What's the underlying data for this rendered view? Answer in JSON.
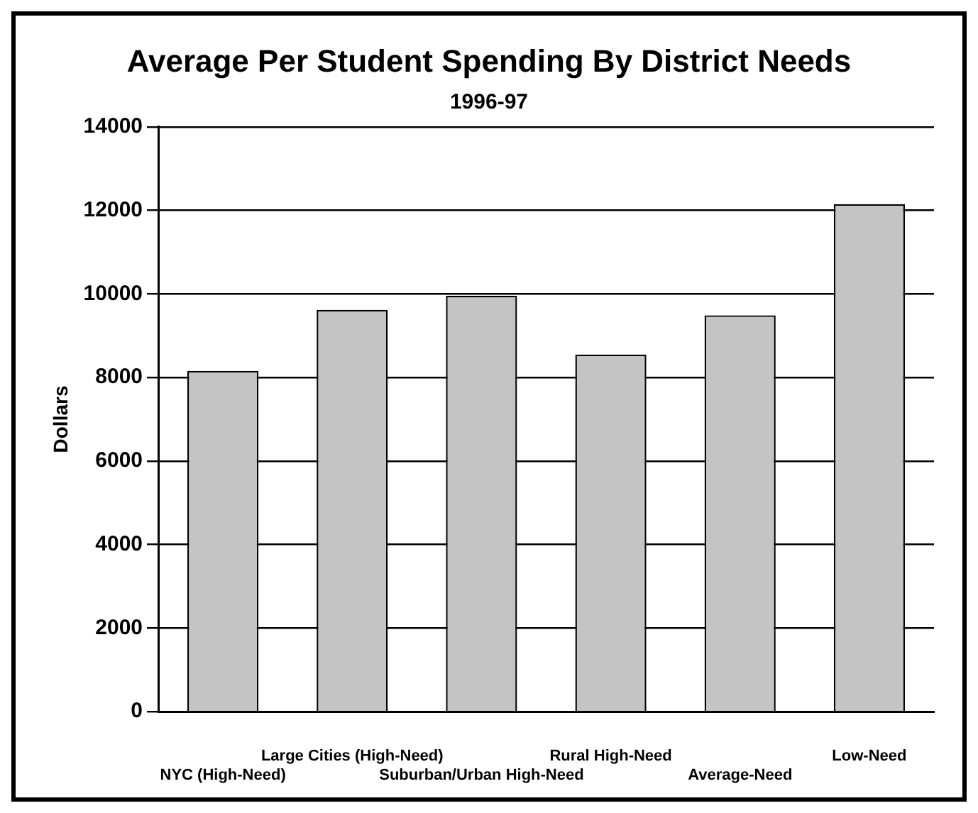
{
  "chart_data": {
    "type": "bar",
    "title": "Average Per Student Spending By District Needs",
    "subtitle": "1996-97",
    "ylabel": "Dollars",
    "categories": [
      "NYC (High-Need)",
      "Large Cities (High-Need)",
      "Suburban/Urban High-Need",
      "Rural High-Need",
      "Average-Need",
      "Low-Need"
    ],
    "values": [
      8160,
      9620,
      9960,
      8550,
      9490,
      12150
    ],
    "color": "#c4c4c4",
    "ylim": [
      0,
      14000
    ],
    "yticks": [
      0,
      2000,
      4000,
      6000,
      8000,
      10000,
      12000,
      14000
    ],
    "grid": "y"
  }
}
